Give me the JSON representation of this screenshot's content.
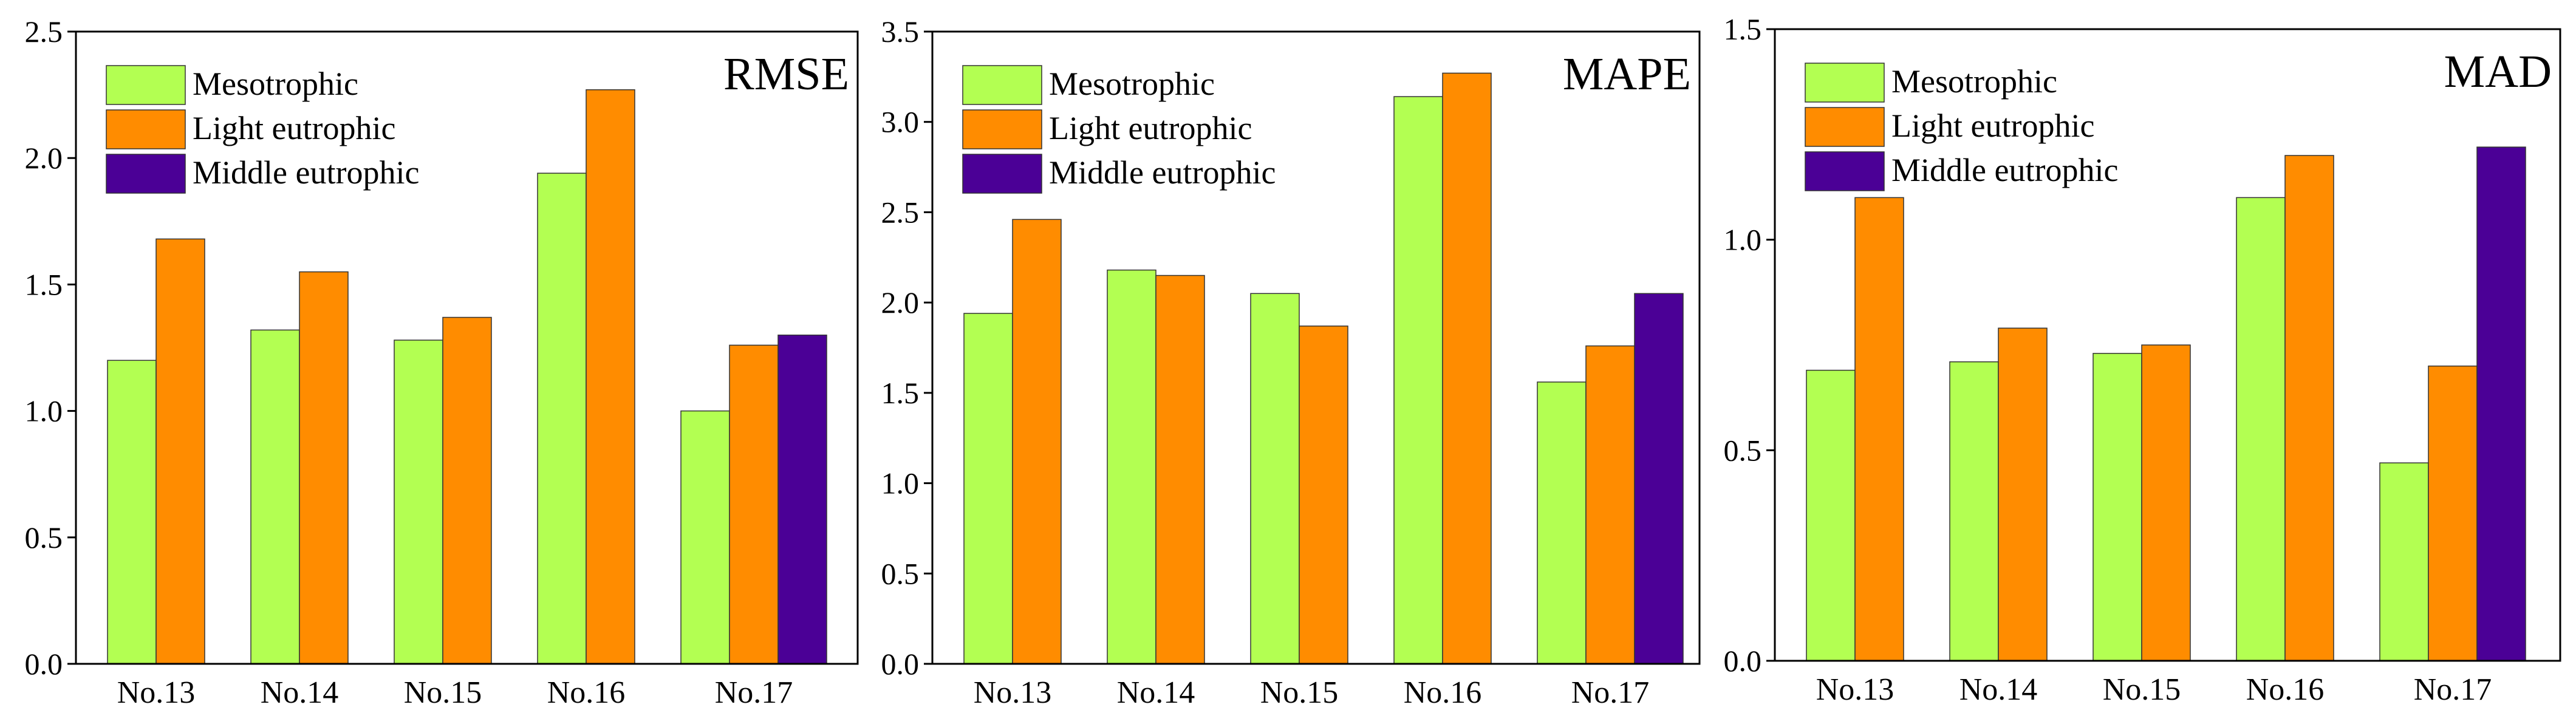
{
  "colors": {
    "mesotrophic": "#b3ff52",
    "light_eutrophic": "#ff8c00",
    "middle_eutrophic": "#4b0096",
    "axis": "#000000"
  },
  "chart_data": [
    {
      "type": "bar",
      "title": "RMSE",
      "categories": [
        "No.13",
        "No.14",
        "No.15",
        "No.16",
        "No.17"
      ],
      "series": [
        {
          "name": "Mesotrophic",
          "values": [
            1.2,
            1.32,
            1.28,
            1.94,
            1.0
          ]
        },
        {
          "name": "Light eutrophic",
          "values": [
            1.68,
            1.55,
            1.37,
            2.27,
            1.26
          ]
        },
        {
          "name": "Middle eutrophic",
          "values": [
            null,
            null,
            null,
            null,
            1.3
          ]
        }
      ],
      "ylim": [
        0,
        2.5
      ],
      "yticks": [
        0.0,
        0.5,
        1.0,
        1.5,
        2.0,
        2.5
      ],
      "ytick_labels": [
        "0.0",
        "0.5",
        "1.0",
        "1.5",
        "2.0",
        "2.5"
      ],
      "xlabel": "",
      "ylabel": "",
      "legend": "top-left"
    },
    {
      "type": "bar",
      "title": "MAPE",
      "categories": [
        "No.13",
        "No.14",
        "No.15",
        "No.16",
        "No.17"
      ],
      "series": [
        {
          "name": "Mesotrophic",
          "values": [
            1.94,
            2.18,
            2.05,
            3.14,
            1.56
          ]
        },
        {
          "name": "Light eutrophic",
          "values": [
            2.46,
            2.15,
            1.87,
            3.27,
            1.76
          ]
        },
        {
          "name": "Middle eutrophic",
          "values": [
            null,
            null,
            null,
            null,
            2.05
          ]
        }
      ],
      "ylim": [
        0,
        3.5
      ],
      "yticks": [
        0.0,
        0.5,
        1.0,
        1.5,
        2.0,
        2.5,
        3.0,
        3.5
      ],
      "ytick_labels": [
        "0.0",
        "0.5",
        "1.0",
        "1.5",
        "2.0",
        "2.5",
        "3.0",
        "3.5"
      ],
      "xlabel": "",
      "ylabel": "",
      "legend": "top-left"
    },
    {
      "type": "bar",
      "title": "MAD",
      "categories": [
        "No.13",
        "No.14",
        "No.15",
        "No.16",
        "No.17"
      ],
      "series": [
        {
          "name": "Mesotrophic",
          "values": [
            0.69,
            0.71,
            0.73,
            1.1,
            0.47
          ]
        },
        {
          "name": "Light eutrophic",
          "values": [
            1.1,
            0.79,
            0.75,
            1.2,
            0.7
          ]
        },
        {
          "name": "Middle eutrophic",
          "values": [
            null,
            null,
            null,
            null,
            1.22
          ]
        }
      ],
      "ylim": [
        0,
        1.5
      ],
      "yticks": [
        0.0,
        0.5,
        1.0,
        1.5
      ],
      "ytick_labels": [
        "0.0",
        "0.5",
        "1.0",
        "1.5"
      ],
      "xlabel": "",
      "ylabel": "",
      "legend": "top-left"
    }
  ]
}
